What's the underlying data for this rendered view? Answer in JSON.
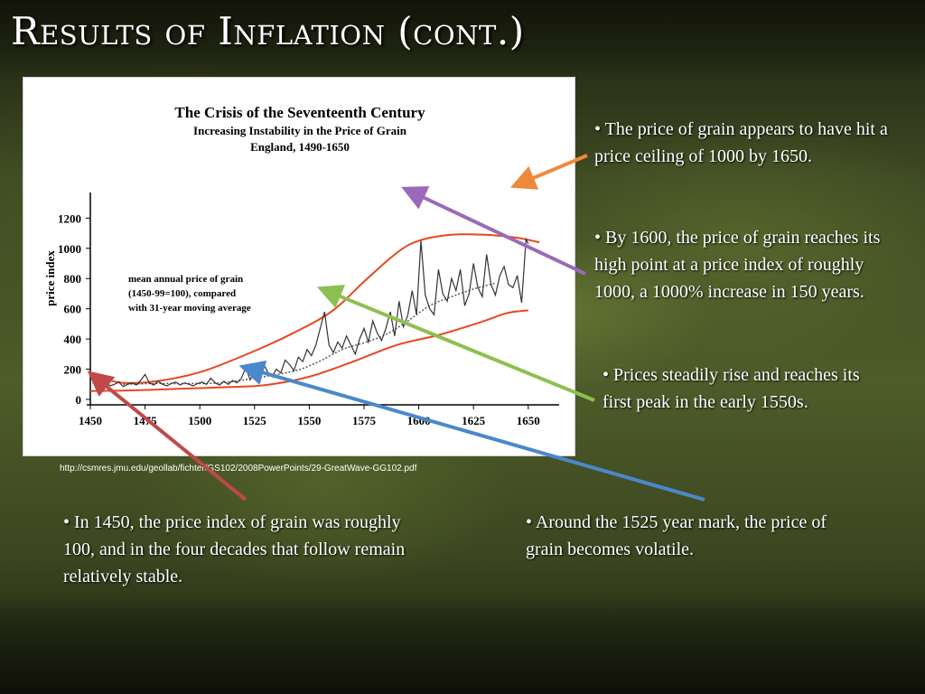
{
  "slide": {
    "title": "Results of Inflation (cont.)",
    "source_url": "http://csmres.jmu.edu/geollab/fichter/GS102/2008PowerPoints/29-GreatWave-GG102.pdf"
  },
  "notes": [
    {
      "text": "• The price of grain appears to have hit a price ceiling of 1000 by 1650.",
      "arrow_color": "#f0883a"
    },
    {
      "text": "• By 1600, the price of grain reaches its high point at a price index of roughly 1000, a 1000% increase in 150 years.",
      "arrow_color": "#9a6ab8"
    },
    {
      "text": "• Prices steadily rise and reaches its first peak in the early 1550s.",
      "arrow_color": "#8cc050"
    },
    {
      "text": "• In 1450, the price index of grain was roughly 100, and in the four decades that follow remain relatively stable.",
      "arrow_color": "#c04848"
    },
    {
      "text": "• Around the 1525 year mark, the price of grain becomes volatile.",
      "arrow_color": "#4a88cc"
    }
  ],
  "chart_data": {
    "type": "line",
    "title": "The Crisis of the Seventeenth Century",
    "subtitle": "Increasing Instability in the Price of Grain",
    "subtitle2": "England, 1490-1650",
    "ylabel": "price index",
    "xlabel": "",
    "xlim": [
      1450,
      1660
    ],
    "ylim": [
      0,
      1250
    ],
    "x_ticks": [
      1450,
      1475,
      1500,
      1525,
      1550,
      1575,
      1600,
      1625,
      1650
    ],
    "y_ticks": [
      0,
      200,
      400,
      600,
      800,
      1000,
      1200
    ],
    "annotation": [
      "mean annual price of grain",
      "(1450-99=100), compared",
      "with 31-year moving average"
    ],
    "colors": {
      "annual": "#333333",
      "envelope": "#e84820",
      "moving_average": "#555555"
    },
    "series": [
      {
        "name": "mean annual price of grain",
        "x": [
          1451,
          1453,
          1455,
          1457,
          1459,
          1461,
          1463,
          1465,
          1467,
          1469,
          1471,
          1473,
          1475,
          1477,
          1479,
          1481,
          1483,
          1485,
          1487,
          1489,
          1491,
          1493,
          1495,
          1497,
          1499,
          1501,
          1503,
          1505,
          1507,
          1509,
          1511,
          1513,
          1515,
          1517,
          1519,
          1521,
          1523,
          1525,
          1527,
          1529,
          1531,
          1533,
          1535,
          1537,
          1539,
          1541,
          1543,
          1545,
          1547,
          1549,
          1551,
          1553,
          1555,
          1557,
          1559,
          1561,
          1563,
          1565,
          1567,
          1569,
          1571,
          1573,
          1575,
          1577,
          1579,
          1581,
          1583,
          1585,
          1587,
          1589,
          1591,
          1593,
          1595,
          1597,
          1599,
          1601,
          1603,
          1605,
          1607,
          1609,
          1611,
          1613,
          1615,
          1617,
          1619,
          1621,
          1623,
          1625,
          1627,
          1629,
          1631,
          1633,
          1635,
          1637,
          1639,
          1641,
          1643,
          1645,
          1647,
          1649,
          1650
        ],
        "y": [
          110,
          95,
          105,
          120,
          90,
          100,
          115,
          85,
          100,
          110,
          95,
          125,
          165,
          110,
          95,
          120,
          100,
          90,
          105,
          115,
          95,
          110,
          100,
          90,
          105,
          115,
          100,
          140,
          110,
          95,
          120,
          100,
          125,
          110,
          140,
          210,
          130,
          185,
          160,
          240,
          180,
          150,
          200,
          175,
          260,
          230,
          190,
          280,
          250,
          330,
          290,
          360,
          470,
          580,
          360,
          310,
          380,
          340,
          420,
          360,
          300,
          400,
          470,
          380,
          520,
          440,
          390,
          470,
          580,
          420,
          650,
          480,
          560,
          720,
          560,
          1050,
          690,
          600,
          560,
          860,
          700,
          650,
          800,
          720,
          860,
          620,
          700,
          900,
          740,
          680,
          960,
          760,
          690,
          820,
          880,
          760,
          740,
          820,
          640,
          1060,
          1030
        ]
      },
      {
        "name": "31-year moving average",
        "x": [
          1465,
          1480,
          1495,
          1510,
          1525,
          1535,
          1545,
          1555,
          1565,
          1575,
          1585,
          1595,
          1605,
          1615,
          1625,
          1635
        ],
        "y": [
          100,
          105,
          105,
          110,
          140,
          165,
          195,
          255,
          330,
          375,
          430,
          520,
          620,
          680,
          730,
          770
        ]
      },
      {
        "name": "upper envelope",
        "x": [
          1452,
          1465,
          1480,
          1500,
          1520,
          1540,
          1560,
          1575,
          1590,
          1600,
          1615,
          1630,
          1645,
          1655
        ],
        "y": [
          150,
          110,
          120,
          180,
          290,
          420,
          580,
          780,
          970,
          1050,
          1090,
          1090,
          1070,
          1040
        ]
      },
      {
        "name": "lower envelope",
        "x": [
          1450,
          1470,
          1490,
          1510,
          1530,
          1550,
          1570,
          1590,
          1610,
          1630,
          1640,
          1650
        ],
        "y": [
          55,
          60,
          70,
          80,
          95,
          150,
          250,
          360,
          430,
          520,
          570,
          590
        ]
      }
    ]
  }
}
